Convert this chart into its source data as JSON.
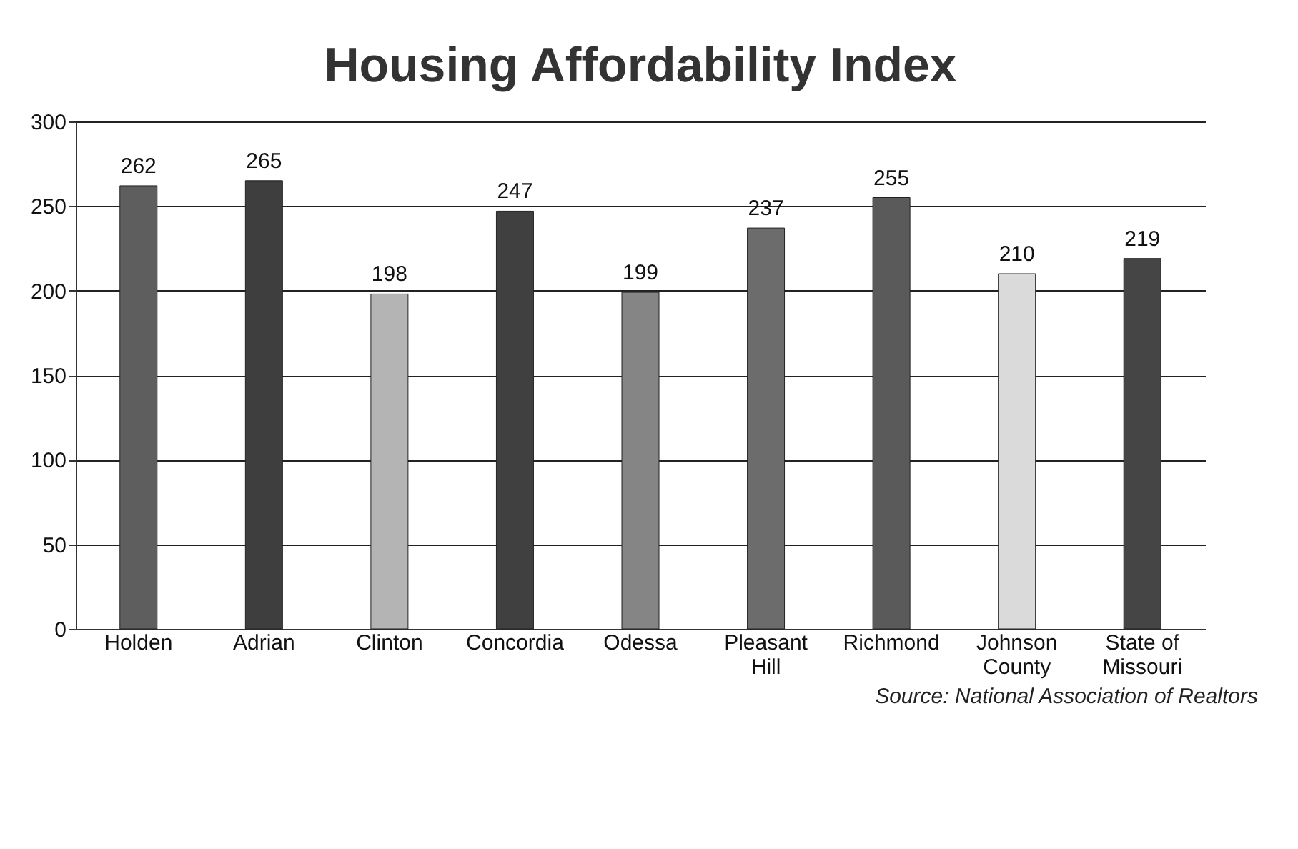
{
  "chart_data": {
    "type": "bar",
    "title": "Housing Affordability Index",
    "categories": [
      "Holden",
      "Adrian",
      "Clinton",
      "Concordia",
      "Odessa",
      "Pleasant Hill",
      "Richmond",
      "Johnson County",
      "State of Missouri"
    ],
    "values": [
      262,
      265,
      198,
      247,
      199,
      237,
      255,
      210,
      219
    ],
    "colors": [
      "#5e5e5e",
      "#3e3e3e",
      "#b4b4b4",
      "#404040",
      "#858585",
      "#6c6c6c",
      "#5a5a5a",
      "#dadada",
      "#454545"
    ],
    "ylim": [
      0,
      300
    ],
    "yticks": [
      0,
      50,
      100,
      150,
      200,
      250,
      300
    ],
    "grid": "y",
    "data_labels": true,
    "annotations": [
      "Source: National Association of Realtors"
    ]
  }
}
